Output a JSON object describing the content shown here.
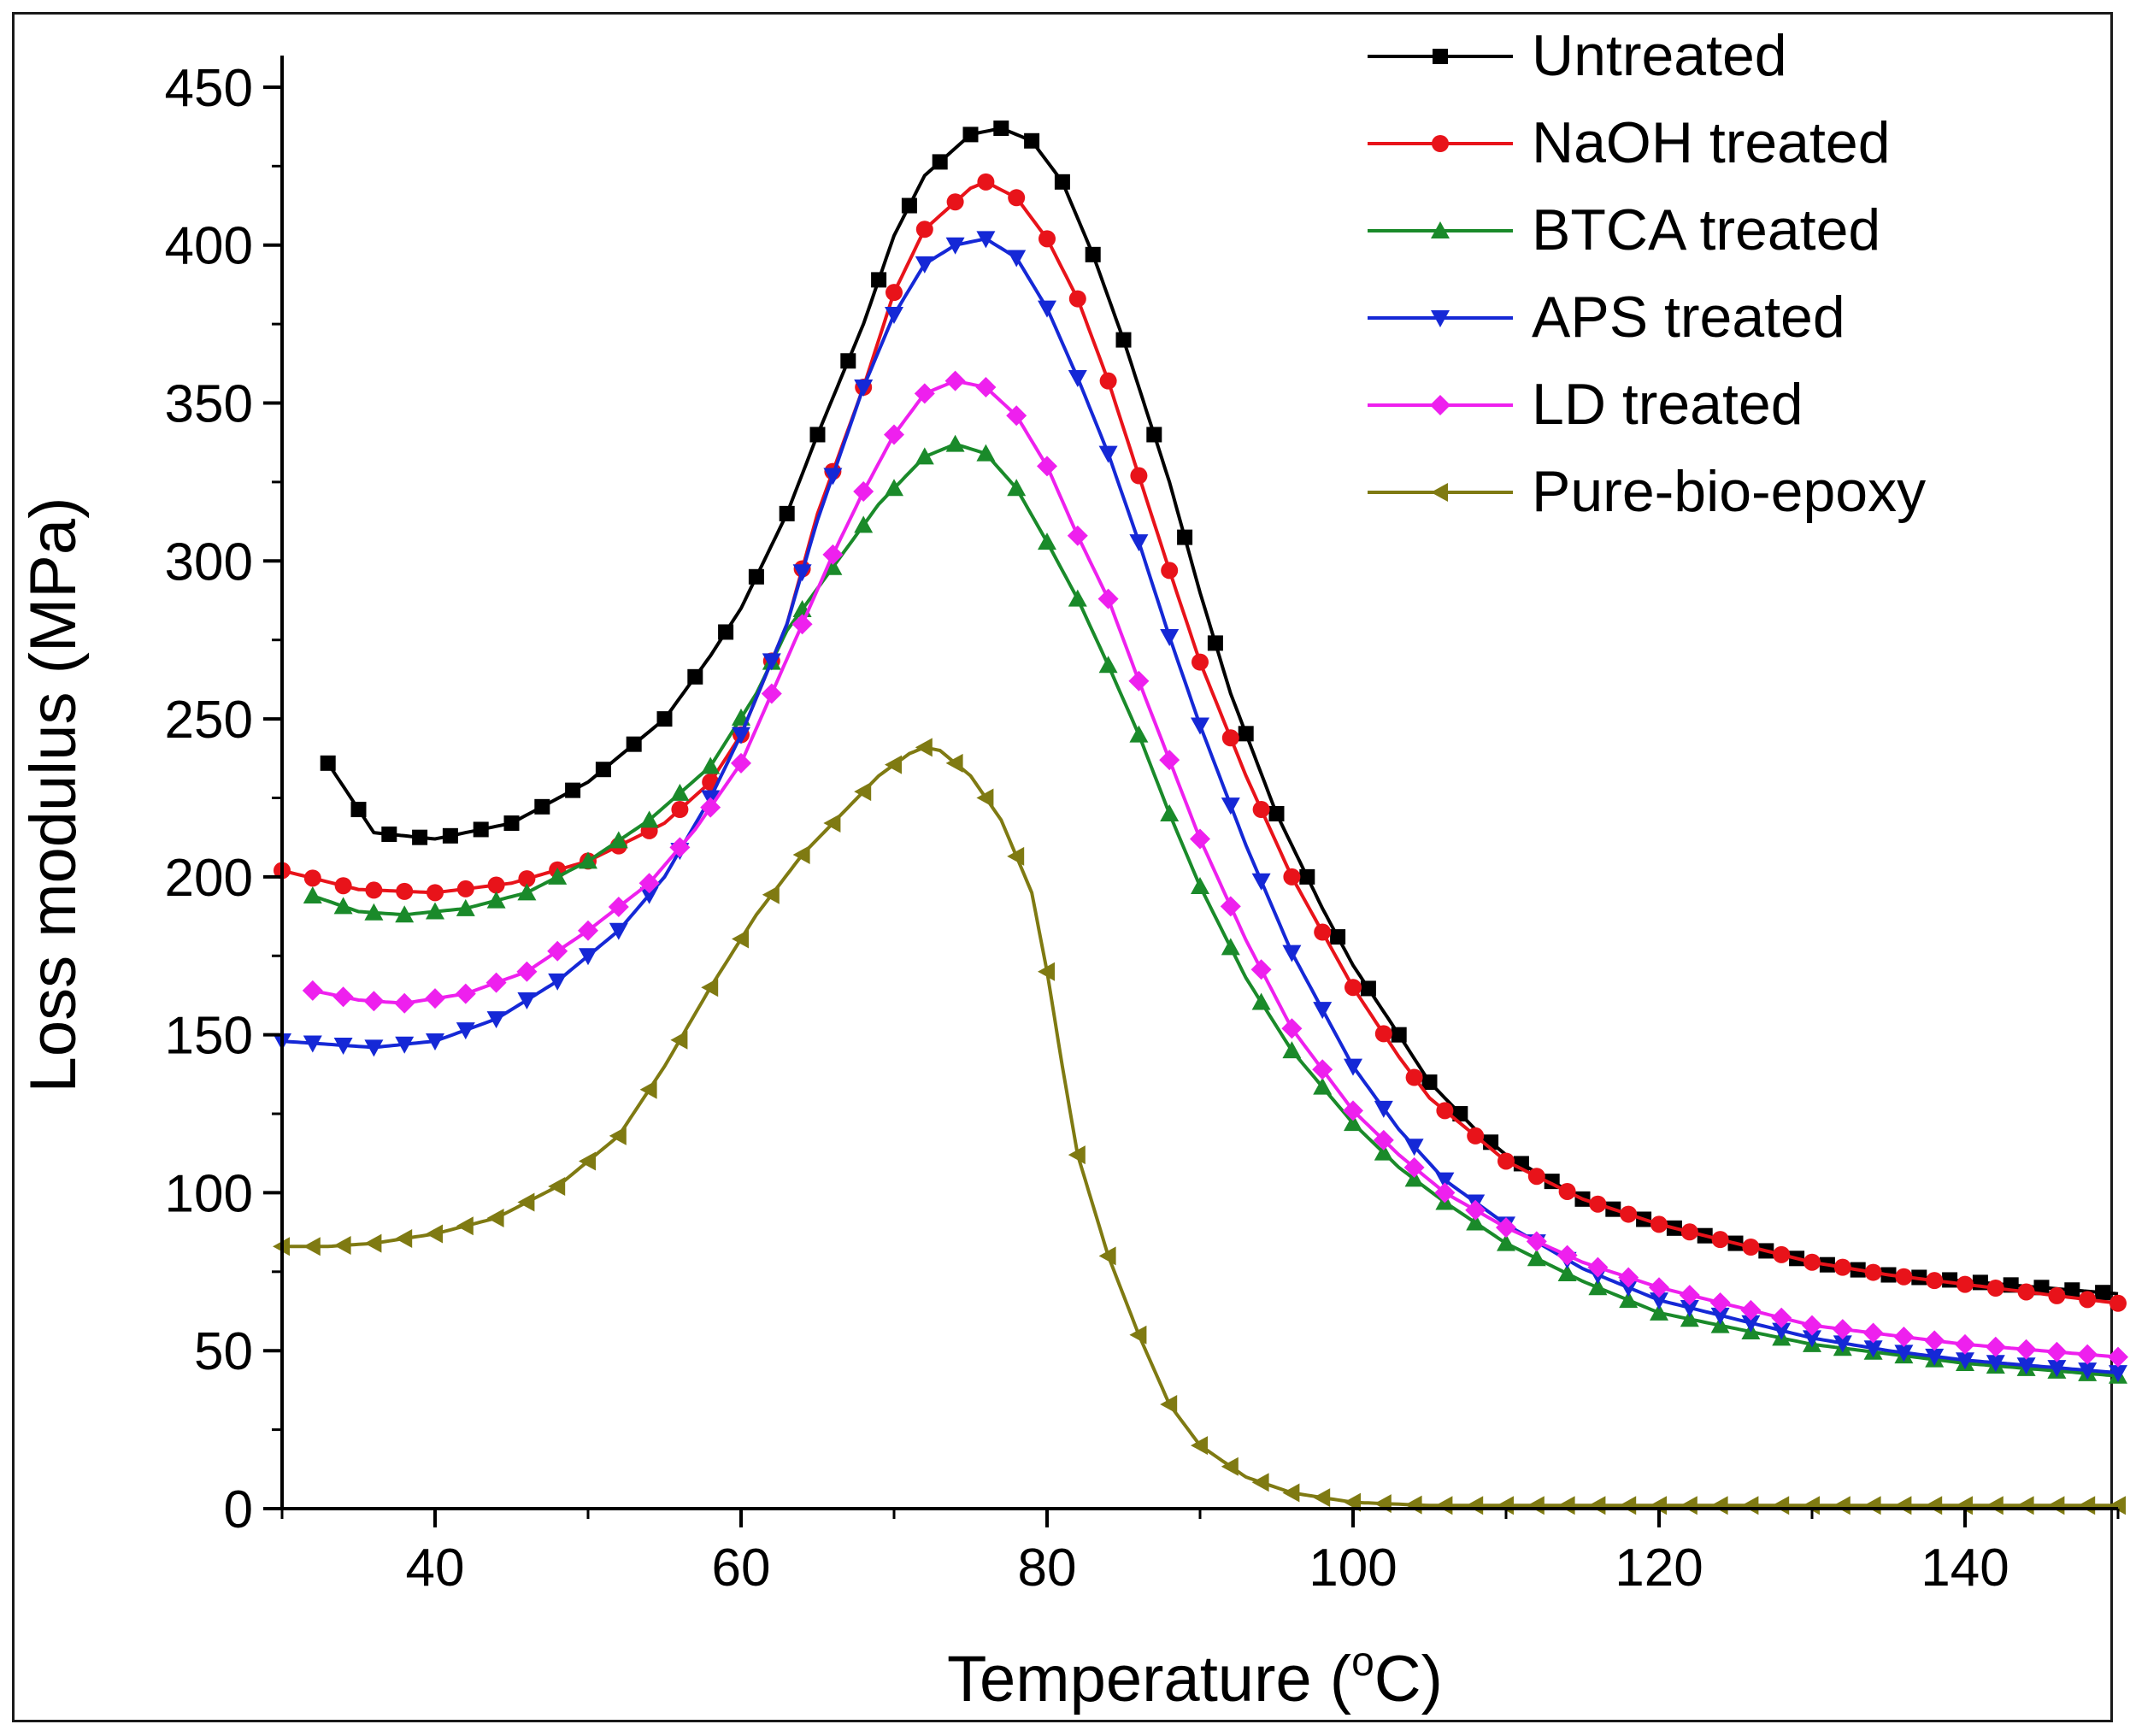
{
  "chart_data": {
    "type": "line",
    "title": "",
    "xlabel": "Temperature (",
    "xlabel_sup": "o",
    "xlabel_suffix": "C)",
    "ylabel": "Loss modulus (MPa)",
    "xlim": [
      30,
      150
    ],
    "ylim": [
      0,
      460
    ],
    "xticks": [
      40,
      60,
      80,
      100,
      120,
      140
    ],
    "yticks": [
      0,
      50,
      100,
      150,
      200,
      250,
      300,
      350,
      400,
      450
    ],
    "legend_position": "top-right",
    "series": [
      {
        "name": "Untreated",
        "color": "#000000",
        "marker": "square",
        "points": [
          [
            33,
            236
          ],
          [
            36,
            214
          ],
          [
            40,
            212
          ],
          [
            45,
            217
          ],
          [
            50,
            230
          ],
          [
            55,
            250
          ],
          [
            58,
            270
          ],
          [
            60,
            285
          ],
          [
            63,
            315
          ],
          [
            65,
            340
          ],
          [
            68,
            375
          ],
          [
            70,
            403
          ],
          [
            72,
            422
          ],
          [
            75,
            435
          ],
          [
            77,
            437
          ],
          [
            79,
            433
          ],
          [
            81,
            420
          ],
          [
            83,
            397
          ],
          [
            85,
            370
          ],
          [
            88,
            325
          ],
          [
            90,
            290
          ],
          [
            92,
            258
          ],
          [
            95,
            220
          ],
          [
            98,
            190
          ],
          [
            100,
            172
          ],
          [
            103,
            150
          ],
          [
            105,
            135
          ],
          [
            108,
            120
          ],
          [
            110,
            112
          ],
          [
            115,
            98
          ],
          [
            120,
            90
          ],
          [
            125,
            84
          ],
          [
            130,
            78
          ],
          [
            135,
            74
          ],
          [
            140,
            72
          ],
          [
            145,
            70
          ],
          [
            150,
            68
          ]
        ]
      },
      {
        "name": "NaOH treated",
        "color": "#e8131a",
        "marker": "circle",
        "points": [
          [
            30,
            202
          ],
          [
            35,
            196
          ],
          [
            40,
            195
          ],
          [
            45,
            198
          ],
          [
            50,
            205
          ],
          [
            55,
            217
          ],
          [
            58,
            230
          ],
          [
            60,
            245
          ],
          [
            63,
            280
          ],
          [
            65,
            315
          ],
          [
            68,
            355
          ],
          [
            70,
            385
          ],
          [
            72,
            405
          ],
          [
            75,
            418
          ],
          [
            76,
            420
          ],
          [
            78,
            415
          ],
          [
            80,
            402
          ],
          [
            82,
            383
          ],
          [
            84,
            357
          ],
          [
            86,
            327
          ],
          [
            88,
            297
          ],
          [
            90,
            268
          ],
          [
            93,
            232
          ],
          [
            96,
            200
          ],
          [
            100,
            165
          ],
          [
            103,
            143
          ],
          [
            105,
            130
          ],
          [
            108,
            118
          ],
          [
            110,
            110
          ],
          [
            115,
            98
          ],
          [
            120,
            90
          ],
          [
            125,
            84
          ],
          [
            130,
            78
          ],
          [
            135,
            74
          ],
          [
            140,
            71
          ],
          [
            145,
            68
          ],
          [
            150,
            65
          ]
        ]
      },
      {
        "name": "BTCA treated",
        "color": "#1a8a2a",
        "marker": "triangle-up",
        "points": [
          [
            32,
            194
          ],
          [
            35,
            189
          ],
          [
            38,
            188
          ],
          [
            42,
            190
          ],
          [
            46,
            195
          ],
          [
            50,
            205
          ],
          [
            54,
            218
          ],
          [
            58,
            235
          ],
          [
            61,
            258
          ],
          [
            63,
            278
          ],
          [
            66,
            298
          ],
          [
            69,
            318
          ],
          [
            72,
            333
          ],
          [
            74,
            337
          ],
          [
            76,
            334
          ],
          [
            78,
            323
          ],
          [
            80,
            306
          ],
          [
            82,
            288
          ],
          [
            84,
            267
          ],
          [
            86,
            245
          ],
          [
            88,
            220
          ],
          [
            90,
            197
          ],
          [
            93,
            168
          ],
          [
            96,
            145
          ],
          [
            100,
            122
          ],
          [
            103,
            108
          ],
          [
            106,
            97
          ],
          [
            110,
            84
          ],
          [
            115,
            72
          ],
          [
            120,
            62
          ],
          [
            125,
            57
          ],
          [
            130,
            52
          ],
          [
            135,
            49
          ],
          [
            140,
            46
          ],
          [
            145,
            44
          ],
          [
            150,
            42
          ]
        ]
      },
      {
        "name": "APS treated",
        "color": "#1528d6",
        "marker": "triangle-down",
        "points": [
          [
            30,
            148
          ],
          [
            33,
            147
          ],
          [
            36,
            146
          ],
          [
            40,
            148
          ],
          [
            44,
            155
          ],
          [
            48,
            167
          ],
          [
            52,
            183
          ],
          [
            55,
            200
          ],
          [
            58,
            225
          ],
          [
            60,
            245
          ],
          [
            63,
            280
          ],
          [
            65,
            313
          ],
          [
            68,
            355
          ],
          [
            70,
            378
          ],
          [
            72,
            394
          ],
          [
            74,
            400
          ],
          [
            76,
            402
          ],
          [
            78,
            396
          ],
          [
            80,
            380
          ],
          [
            82,
            358
          ],
          [
            84,
            334
          ],
          [
            86,
            306
          ],
          [
            88,
            276
          ],
          [
            90,
            248
          ],
          [
            93,
            210
          ],
          [
            96,
            176
          ],
          [
            100,
            140
          ],
          [
            103,
            120
          ],
          [
            106,
            104
          ],
          [
            110,
            90
          ],
          [
            115,
            76
          ],
          [
            120,
            66
          ],
          [
            125,
            60
          ],
          [
            130,
            54
          ],
          [
            135,
            50
          ],
          [
            140,
            47
          ],
          [
            145,
            45
          ],
          [
            150,
            43
          ]
        ]
      },
      {
        "name": "LD treated",
        "color": "#ee20ee",
        "marker": "diamond",
        "points": [
          [
            32,
            164
          ],
          [
            35,
            161
          ],
          [
            38,
            160
          ],
          [
            42,
            163
          ],
          [
            46,
            170
          ],
          [
            50,
            183
          ],
          [
            54,
            198
          ],
          [
            57,
            215
          ],
          [
            60,
            236
          ],
          [
            62,
            258
          ],
          [
            64,
            280
          ],
          [
            66,
            302
          ],
          [
            68,
            322
          ],
          [
            70,
            340
          ],
          [
            72,
            353
          ],
          [
            74,
            357
          ],
          [
            76,
            355
          ],
          [
            78,
            346
          ],
          [
            80,
            330
          ],
          [
            82,
            308
          ],
          [
            84,
            288
          ],
          [
            86,
            262
          ],
          [
            88,
            237
          ],
          [
            90,
            212
          ],
          [
            93,
            180
          ],
          [
            96,
            152
          ],
          [
            100,
            126
          ],
          [
            103,
            112
          ],
          [
            106,
            100
          ],
          [
            110,
            89
          ],
          [
            115,
            78
          ],
          [
            120,
            70
          ],
          [
            125,
            64
          ],
          [
            130,
            58
          ],
          [
            135,
            55
          ],
          [
            140,
            52
          ],
          [
            145,
            50
          ],
          [
            150,
            48
          ]
        ]
      },
      {
        "name": "Pure-bio-epoxy",
        "color": "#7f7a12",
        "marker": "triangle-left",
        "points": [
          [
            30,
            83
          ],
          [
            33,
            83
          ],
          [
            36,
            84
          ],
          [
            40,
            87
          ],
          [
            44,
            92
          ],
          [
            48,
            102
          ],
          [
            52,
            118
          ],
          [
            55,
            140
          ],
          [
            58,
            165
          ],
          [
            61,
            188
          ],
          [
            64,
            207
          ],
          [
            67,
            222
          ],
          [
            69,
            232
          ],
          [
            71,
            239
          ],
          [
            72,
            241
          ],
          [
            73,
            240
          ],
          [
            75,
            232
          ],
          [
            77,
            218
          ],
          [
            79,
            195
          ],
          [
            80,
            170
          ],
          [
            81,
            140
          ],
          [
            82,
            112
          ],
          [
            84,
            80
          ],
          [
            86,
            55
          ],
          [
            88,
            33
          ],
          [
            90,
            20
          ],
          [
            93,
            10
          ],
          [
            96,
            5
          ],
          [
            100,
            2
          ],
          [
            105,
            1
          ],
          [
            110,
            1
          ],
          [
            120,
            1
          ],
          [
            130,
            1
          ],
          [
            140,
            1
          ],
          [
            150,
            1
          ]
        ]
      }
    ]
  }
}
